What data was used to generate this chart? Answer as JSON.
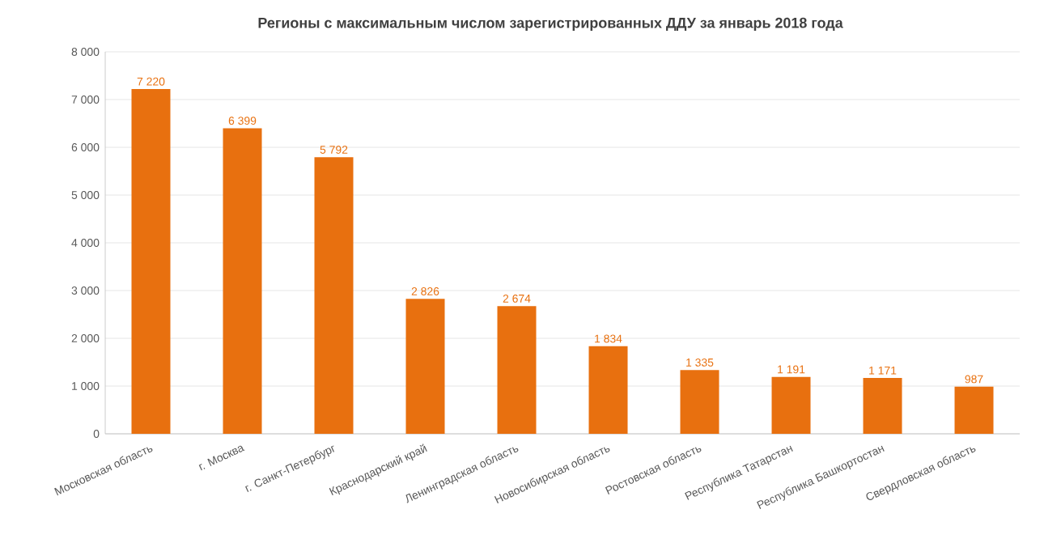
{
  "chart_data": {
    "type": "bar",
    "title": "Регионы с максимальным числом зарегистрированных ДДУ за январь 2018 года",
    "categories": [
      "Московская область",
      "г. Москва",
      "г. Санкт-Петербург",
      "Краснодарский край",
      "Ленинградская область",
      "Новосибирская область",
      "Ростовская область",
      "Республика Татарстан",
      "Республика Башкортостан",
      "Свердловская область"
    ],
    "values": [
      7220,
      6399,
      5792,
      2826,
      2674,
      1834,
      1335,
      1191,
      1171,
      987
    ],
    "value_labels": [
      "7 220",
      "6 399",
      "5 792",
      "2 826",
      "2 674",
      "1 834",
      "1 335",
      "1 191",
      "1 171",
      "987"
    ],
    "color": "#e8700f",
    "ylim": [
      0,
      8000
    ],
    "yticks": [
      0,
      {
        "value": 1000,
        "label": "1 000"
      },
      {
        "value": 2000,
        "label": "2 000"
      },
      {
        "value": 3000,
        "label": "3 000"
      },
      {
        "value": 4000,
        "label": "4 000"
      },
      {
        "value": 5000,
        "label": "5 000"
      },
      {
        "value": 6000,
        "label": "6 000"
      },
      {
        "value": 7000,
        "label": "7 000"
      },
      {
        "value": 8000,
        "label": "8 000"
      }
    ],
    "grid": "y"
  }
}
